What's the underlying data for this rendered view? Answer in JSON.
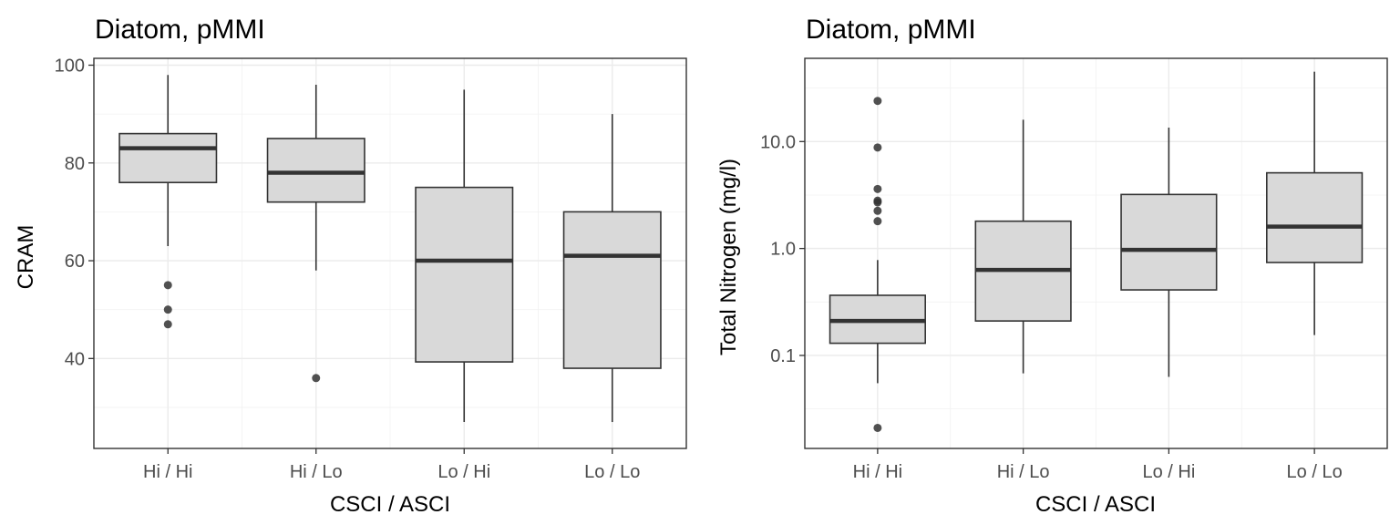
{
  "colors": {
    "box_fill": "#d9d9d9",
    "line": "#333333",
    "grid": "#ebebeb"
  },
  "chart_data": [
    {
      "type": "boxplot",
      "title": "Diatom, pMMI",
      "xlabel": "CSCI / ASCI",
      "ylabel": "CRAM",
      "yscale": "linear",
      "ylim": [
        21.6,
        101.4
      ],
      "yticks": [
        40,
        60,
        80,
        100
      ],
      "ytick_labels": [
        "40",
        "60",
        "80",
        "100"
      ],
      "grid": true,
      "categories": [
        "Hi / Hi",
        "Hi / Lo",
        "Lo / Hi",
        "Lo / Lo"
      ],
      "boxes": [
        {
          "category": "Hi / Hi",
          "whisker_low": 63,
          "q1": 76,
          "median": 83,
          "q3": 86,
          "whisker_high": 98,
          "outliers": [
            55,
            50,
            47
          ]
        },
        {
          "category": "Hi / Lo",
          "whisker_low": 58,
          "q1": 72,
          "median": 78,
          "q3": 85,
          "whisker_high": 96,
          "outliers": [
            36
          ]
        },
        {
          "category": "Lo / Hi",
          "whisker_low": 27,
          "q1": 39.3,
          "median": 60,
          "q3": 75,
          "whisker_high": 95,
          "outliers": []
        },
        {
          "category": "Lo / Lo",
          "whisker_low": 27,
          "q1": 38,
          "median": 61,
          "q3": 70,
          "whisker_high": 90,
          "outliers": []
        }
      ]
    },
    {
      "type": "boxplot",
      "title": "Diatom, pMMI",
      "xlabel": "CSCI / ASCI",
      "ylabel": "Total Nitrogen (mg/l)",
      "yscale": "log10",
      "ylim": [
        0.0135,
        60
      ],
      "yticks": [
        0.1,
        1.0,
        10.0
      ],
      "ytick_labels": [
        "0.1",
        "1.0",
        "10.0"
      ],
      "grid": true,
      "categories": [
        "Hi / Hi",
        "Hi / Lo",
        "Lo / Hi",
        "Lo / Lo"
      ],
      "boxes": [
        {
          "category": "Hi / Hi",
          "whisker_low": 0.055,
          "q1": 0.13,
          "median": 0.21,
          "q3": 0.365,
          "whisker_high": 0.78,
          "outliers": [
            24,
            8.8,
            3.6,
            2.8,
            2.7,
            2.25,
            1.8,
            0.021
          ]
        },
        {
          "category": "Hi / Lo",
          "whisker_low": 0.068,
          "q1": 0.21,
          "median": 0.63,
          "q3": 1.8,
          "whisker_high": 16,
          "outliers": []
        },
        {
          "category": "Lo / Hi",
          "whisker_low": 0.063,
          "q1": 0.41,
          "median": 0.97,
          "q3": 3.2,
          "whisker_high": 13.5,
          "outliers": []
        },
        {
          "category": "Lo / Lo",
          "whisker_low": 0.155,
          "q1": 0.74,
          "median": 1.6,
          "q3": 5.1,
          "whisker_high": 45,
          "outliers": []
        }
      ]
    }
  ]
}
